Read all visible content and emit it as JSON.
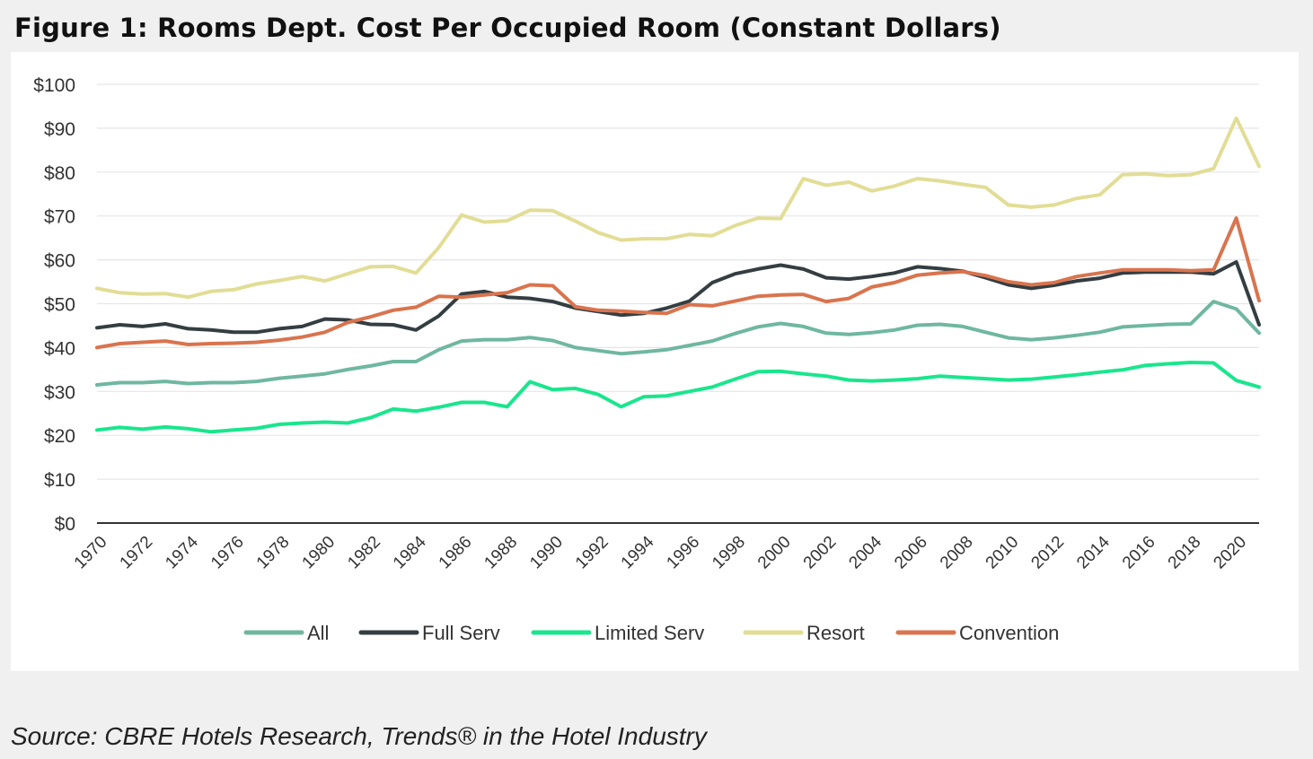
{
  "figure": {
    "title": "Figure 1: Rooms Dept. Cost Per Occupied Room (Constant Dollars)",
    "source": "Source: CBRE Hotels Research, Trends® in the Hotel Industry"
  },
  "chart_data": {
    "type": "line",
    "title": "Figure 1: Rooms Dept. Cost Per Occupied Room (Constant Dollars)",
    "xlabel": "",
    "ylabel": "",
    "ylim": [
      0,
      100
    ],
    "y_ticks": [
      "$0",
      "$10",
      "$20",
      "$30",
      "$40",
      "$50",
      "$60",
      "$70",
      "$80",
      "$90",
      "$100"
    ],
    "x_tick_labels": [
      "1970",
      "1972",
      "1974",
      "1976",
      "1978",
      "1980",
      "1982",
      "1984",
      "1986",
      "1988",
      "1990",
      "1992",
      "1994",
      "1996",
      "1998",
      "2000",
      "2002",
      "2004",
      "2006",
      "2008",
      "2010",
      "2012",
      "2014",
      "2016",
      "2018",
      "2020"
    ],
    "x": [
      1970,
      1971,
      1972,
      1973,
      1974,
      1975,
      1976,
      1977,
      1978,
      1979,
      1980,
      1981,
      1982,
      1983,
      1984,
      1985,
      1986,
      1987,
      1988,
      1989,
      1990,
      1991,
      1992,
      1993,
      1994,
      1995,
      1996,
      1997,
      1998,
      1999,
      2000,
      2001,
      2002,
      2003,
      2004,
      2005,
      2006,
      2007,
      2008,
      2009,
      2010,
      2011,
      2012,
      2013,
      2014,
      2015,
      2016,
      2017,
      2018,
      2019,
      2020,
      2021
    ],
    "grid": true,
    "legend_position": "bottom",
    "series": [
      {
        "name": "All",
        "color": "#6fb7a1",
        "values": [
          31.5,
          32,
          32,
          32.3,
          31.8,
          32,
          32,
          32.3,
          33,
          33.5,
          34,
          35,
          35.8,
          36.8,
          36.8,
          39.5,
          41.5,
          41.8,
          41.8,
          42.3,
          41.6,
          40,
          39.3,
          38.6,
          39,
          39.5,
          40.5,
          41.5,
          43.2,
          44.7,
          45.5,
          44.8,
          43.3,
          43,
          43.4,
          44,
          45.1,
          45.3,
          44.8,
          43.5,
          42.2,
          41.8,
          42.2,
          42.8,
          43.5,
          44.7,
          45,
          45.3,
          45.4,
          50.5,
          48.8,
          43.3
        ]
      },
      {
        "name": "Full Serv",
        "color": "#343e42",
        "values": [
          44.5,
          45.2,
          44.8,
          45.4,
          44.3,
          44,
          43.5,
          43.5,
          44.3,
          44.8,
          46.5,
          46.3,
          45.3,
          45.2,
          44,
          47.2,
          52.2,
          52.8,
          51.5,
          51.2,
          50.5,
          49,
          48.2,
          47.4,
          47.8,
          49,
          50.6,
          54.8,
          56.8,
          57.9,
          58.8,
          57.9,
          55.9,
          55.6,
          56.2,
          57,
          58.4,
          58,
          57.4,
          55.9,
          54.3,
          53.5,
          54.2,
          55.2,
          55.8,
          57,
          57.2,
          57.2,
          57.2,
          56.8,
          59.5,
          45.2
        ]
      },
      {
        "name": "Limited Serv",
        "color": "#19e68d",
        "values": [
          21.2,
          21.8,
          21.4,
          21.9,
          21.5,
          20.8,
          21.2,
          21.6,
          22.5,
          22.8,
          23,
          22.8,
          24,
          26,
          25.5,
          26.4,
          27.5,
          27.5,
          26.5,
          32.2,
          30.4,
          30.7,
          29.3,
          26.5,
          28.8,
          29,
          30,
          31,
          32.8,
          34.5,
          34.6,
          34,
          33.5,
          32.6,
          32.4,
          32.6,
          32.9,
          33.5,
          33.2,
          32.9,
          32.6,
          32.8,
          33.3,
          33.8,
          34.4,
          34.9,
          35.9,
          36.3,
          36.6,
          36.5,
          32.5,
          31
        ]
      },
      {
        "name": "Resort",
        "color": "#e2dd95",
        "values": [
          53.5,
          52.5,
          52.2,
          52.3,
          51.5,
          52.8,
          53.2,
          54.5,
          55.3,
          56.2,
          55.2,
          56.8,
          58.4,
          58.5,
          57,
          62.8,
          70.2,
          68.6,
          68.9,
          71.3,
          71.2,
          68.8,
          66.2,
          64.5,
          64.8,
          64.8,
          65.8,
          65.5,
          67.8,
          69.5,
          69.4,
          78.5,
          77,
          77.7,
          75.7,
          76.8,
          78.5,
          78,
          77.2,
          76.5,
          72.5,
          72,
          72.5,
          74,
          74.8,
          79.4,
          79.6,
          79.2,
          79.4,
          80.8,
          92.3,
          81.3
        ]
      },
      {
        "name": "Convention",
        "color": "#d9744e",
        "values": [
          40,
          40.9,
          41.2,
          41.5,
          40.7,
          40.9,
          41,
          41.2,
          41.7,
          42.4,
          43.5,
          45.7,
          47,
          48.5,
          49.2,
          51.7,
          51.5,
          52,
          52.5,
          54.3,
          54.1,
          49.3,
          48.5,
          48.3,
          48,
          47.8,
          49.8,
          49.5,
          50.6,
          51.7,
          52,
          52.1,
          50.5,
          51.2,
          53.8,
          54.8,
          56.5,
          57,
          57.3,
          56.4,
          55,
          54.3,
          54.8,
          56.2,
          57,
          57.7,
          57.7,
          57.7,
          57.5,
          57.7,
          69.5,
          50.7
        ]
      }
    ]
  }
}
